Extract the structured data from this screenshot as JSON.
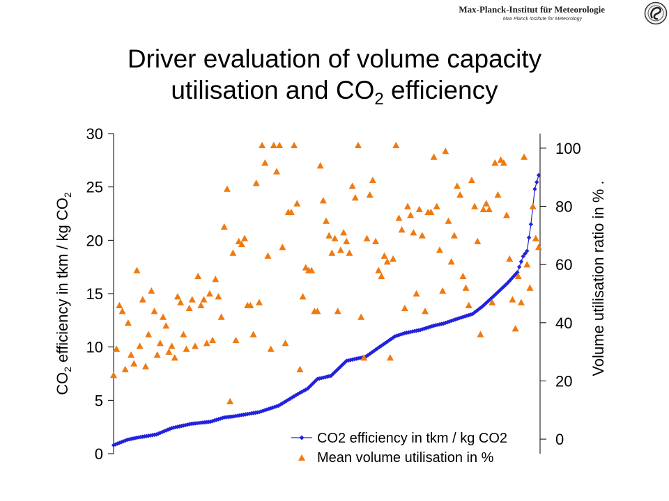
{
  "header": {
    "institute_name": "Max-Planck-Institut für Meteorologie",
    "institute_subtitle": "Max Planck Institute for Meteorology",
    "title_line1": "Driver evaluation of volume capacity",
    "title_line2_pre": "utilisation and CO",
    "title_line2_sub": "2",
    "title_line2_post": " efficiency"
  },
  "chart_data": {
    "type": "scatter",
    "left_axis": {
      "label_pre": "CO",
      "label_sub": "2",
      "label_mid": " efficiency in tkm / kg CO",
      "label_sub2": "2",
      "range": [
        0,
        30
      ],
      "ticks": [
        0,
        5,
        10,
        15,
        20,
        25,
        30
      ]
    },
    "right_axis": {
      "label": "Volume utilisation ratio in % .",
      "range": [
        -5,
        105
      ],
      "ticks": [
        0,
        20,
        40,
        60,
        80,
        100
      ]
    },
    "legend": {
      "placement": "bottom-right",
      "entries": [
        "CO2 efficiency in tkm / kg CO2",
        "Mean volume utilisation in %"
      ]
    },
    "colors": {
      "efficiency": "#2222dd",
      "utilisation": "#f07a10"
    },
    "efficiency_series": {
      "name": "CO2 efficiency in tkm / kg CO2",
      "axis": "left",
      "count": 220,
      "x": [
        0,
        7,
        12,
        22,
        30,
        40,
        50,
        57,
        62,
        75,
        85,
        95,
        100,
        105,
        112,
        120,
        125,
        130,
        137,
        145,
        150,
        158,
        165,
        170,
        178,
        185,
        190,
        196,
        203,
        208,
        211,
        213,
        215,
        217,
        219
      ],
      "values": [
        0.8,
        1.3,
        1.5,
        1.8,
        2.4,
        2.8,
        3.0,
        3.4,
        3.5,
        3.9,
        4.5,
        5.6,
        6.1,
        7.0,
        7.3,
        8.7,
        8.9,
        9.1,
        10.0,
        11.0,
        11.3,
        11.6,
        12.0,
        12.2,
        12.7,
        13.1,
        13.8,
        14.8,
        16.0,
        17.0,
        18.5,
        19.0,
        21.5,
        24.8,
        26.1
      ]
    },
    "utilisation_series": {
      "name": "Mean volume utilisation in %",
      "axis": "right",
      "values": [
        22,
        31,
        46,
        44,
        24,
        40,
        29,
        26,
        58,
        32,
        48,
        25,
        36,
        51,
        44,
        29,
        33,
        42,
        39,
        30,
        32,
        28,
        49,
        47,
        36,
        31,
        45,
        48,
        32,
        56,
        46,
        48,
        33,
        50,
        34,
        55,
        49,
        42,
        73,
        86,
        13,
        64,
        34,
        68,
        67,
        69,
        46,
        46,
        36,
        88,
        47,
        101,
        95,
        63,
        31,
        101,
        92,
        101,
        66,
        33,
        78,
        78,
        101,
        81,
        24,
        49,
        59,
        58,
        58,
        44,
        44,
        94,
        82,
        75,
        70,
        64,
        69,
        44,
        65,
        71,
        68,
        64,
        87,
        83,
        101,
        42,
        28,
        69,
        84,
        89,
        68,
        58,
        56,
        63,
        61,
        28,
        62,
        101,
        76,
        72,
        45,
        80,
        77,
        71,
        50,
        79,
        70,
        44,
        78,
        78,
        97,
        80,
        65,
        51,
        99,
        75,
        61,
        70,
        87,
        84,
        56,
        52,
        46,
        89,
        80,
        68,
        36,
        79,
        81,
        79,
        47,
        95,
        84,
        96,
        95,
        77,
        62,
        48,
        38,
        56,
        47,
        97,
        60,
        52,
        80,
        69,
        66
      ]
    }
  }
}
